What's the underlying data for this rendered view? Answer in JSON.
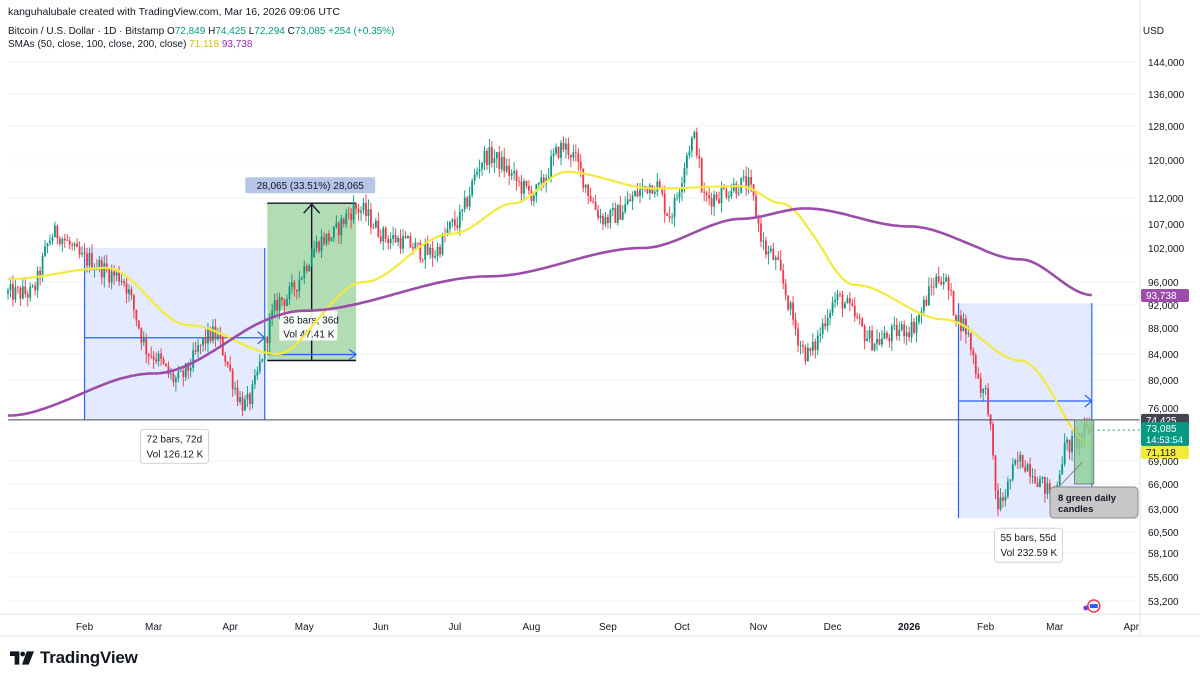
{
  "header": {
    "credit": "kanguhalubale created with TradingView.com, Mar 16, 2026 09:06 UTC",
    "symbol": "Bitcoin / U.S. Dollar · 1D · Bitstamp",
    "o_label": "O",
    "o_value": "72,849",
    "h_label": "H",
    "h_value": "74,425",
    "l_label": "L",
    "l_value": "72,294",
    "c_label": "C",
    "c_value": "73,085",
    "change": "+254 (+0.35%)",
    "sma_label": "SMAs (50, close, 100, close, 200, close)",
    "sma50_value": "71,118",
    "sma200_value": "93,738"
  },
  "currency": "USD",
  "brand": "TradingView",
  "colors": {
    "up": "#089981",
    "down": "#f23645",
    "sma50": "#f2eb3b",
    "sma200": "#9c4ca9",
    "range_blue": "#2962ff",
    "range_fill": "#dbe3ff",
    "green_fill": "#a5d6a7",
    "grid": "#f0f3fa"
  },
  "chart_data": {
    "type": "candlestick",
    "symbol": "BTC/USD",
    "interval": "1D",
    "x_ticks": [
      "Feb",
      "Mar",
      "Apr",
      "May",
      "Jun",
      "Jul",
      "Aug",
      "Sep",
      "Oct",
      "Nov",
      "Dec",
      "2026",
      "Feb",
      "Mar",
      "Apr"
    ],
    "y_ticks": [
      "144,000",
      "136,000",
      "128,000",
      "120,000",
      "112,000",
      "107,000",
      "102,000",
      "96,000",
      "92,000",
      "88,000",
      "84,000",
      "80,000",
      "76,000",
      "69,000",
      "66,000",
      "63,000",
      "60,500",
      "58,100",
      "55,600",
      "53,200"
    ],
    "price_anchors": [
      {
        "date": "2025-01-10",
        "close": 94000
      },
      {
        "date": "2025-01-20",
        "close": 105000
      },
      {
        "date": "2025-02-01",
        "close": 100000
      },
      {
        "date": "2025-02-15",
        "close": 97000
      },
      {
        "date": "2025-02-28",
        "close": 84000
      },
      {
        "date": "2025-03-10",
        "close": 80000
      },
      {
        "date": "2025-03-25",
        "close": 87000
      },
      {
        "date": "2025-04-07",
        "close": 76500
      },
      {
        "date": "2025-04-22",
        "close": 93000
      },
      {
        "date": "2025-05-10",
        "close": 104000
      },
      {
        "date": "2025-05-22",
        "close": 110000
      },
      {
        "date": "2025-06-05",
        "close": 104000
      },
      {
        "date": "2025-06-22",
        "close": 101000
      },
      {
        "date": "2025-07-01",
        "close": 107000
      },
      {
        "date": "2025-07-14",
        "close": 121000
      },
      {
        "date": "2025-08-02",
        "close": 113000
      },
      {
        "date": "2025-08-14",
        "close": 123000
      },
      {
        "date": "2025-08-31",
        "close": 108000
      },
      {
        "date": "2025-09-20",
        "close": 115000
      },
      {
        "date": "2025-09-26",
        "close": 109000
      },
      {
        "date": "2025-10-06",
        "close": 125000
      },
      {
        "date": "2025-10-10",
        "close": 112000
      },
      {
        "date": "2025-10-27",
        "close": 115000
      },
      {
        "date": "2025-11-05",
        "close": 101000
      },
      {
        "date": "2025-11-21",
        "close": 84000
      },
      {
        "date": "2025-12-03",
        "close": 93000
      },
      {
        "date": "2025-12-18",
        "close": 86000
      },
      {
        "date": "2026-01-01",
        "close": 88000
      },
      {
        "date": "2026-01-14",
        "close": 97000
      },
      {
        "date": "2026-01-22",
        "close": 89000
      },
      {
        "date": "2026-02-01",
        "close": 78000
      },
      {
        "date": "2026-02-06",
        "close": 63500
      },
      {
        "date": "2026-02-15",
        "close": 69000
      },
      {
        "date": "2026-02-28",
        "close": 65000
      },
      {
        "date": "2026-03-06",
        "close": 71000
      },
      {
        "date": "2026-03-16",
        "close": 73085
      }
    ],
    "sma50_anchors": [
      {
        "date": "2025-01-01",
        "value": 96500
      },
      {
        "date": "2025-02-10",
        "value": 98500
      },
      {
        "date": "2025-03-15",
        "value": 88500
      },
      {
        "date": "2025-04-20",
        "value": 84000
      },
      {
        "date": "2025-05-25",
        "value": 96000
      },
      {
        "date": "2025-06-30",
        "value": 105000
      },
      {
        "date": "2025-07-25",
        "value": 111000
      },
      {
        "date": "2025-08-15",
        "value": 117500
      },
      {
        "date": "2025-09-20",
        "value": 114000
      },
      {
        "date": "2025-10-25",
        "value": 114500
      },
      {
        "date": "2025-11-10",
        "value": 111000
      },
      {
        "date": "2025-12-10",
        "value": 95500
      },
      {
        "date": "2026-01-15",
        "value": 89500
      },
      {
        "date": "2026-02-15",
        "value": 83000
      },
      {
        "date": "2026-03-16",
        "value": 71118
      }
    ],
    "sma200_anchors": [
      {
        "date": "2025-01-01",
        "value": 75000
      },
      {
        "date": "2025-03-01",
        "value": 81000
      },
      {
        "date": "2025-05-01",
        "value": 91000
      },
      {
        "date": "2025-07-15",
        "value": 97000
      },
      {
        "date": "2025-09-15",
        "value": 102000
      },
      {
        "date": "2025-10-25",
        "value": 108000
      },
      {
        "date": "2025-11-20",
        "value": 110000
      },
      {
        "date": "2026-01-01",
        "value": 106500
      },
      {
        "date": "2026-02-15",
        "value": 100000
      },
      {
        "date": "2026-03-16",
        "value": 93738
      }
    ],
    "price_tags": [
      {
        "label": "93,738",
        "value": 93738,
        "color": "#9c4ca9",
        "text_color": "#ffffff"
      },
      {
        "label": "74,425",
        "value": 74425,
        "color": "#434651",
        "text_color": "#ffffff"
      },
      {
        "label": "73,085",
        "sub": "14:53:54",
        "value": 73085,
        "color": "#089981",
        "text_color": "#ffffff"
      },
      {
        "label": "71,118",
        "value": 71118,
        "color": "#f2eb3b",
        "text_color": "#131722"
      }
    ],
    "horizontal_line": {
      "value": 74425
    },
    "ranges": [
      {
        "name": "range-2025-q1",
        "start": "2025-02-01",
        "end": "2025-04-15",
        "high": 102000,
        "low": 74500,
        "arrow_at": 86500,
        "label_bars": "72 bars, 72d",
        "label_vol": "Vol 126.12 K"
      },
      {
        "name": "range-2026",
        "start": "2026-01-21",
        "end": "2026-03-16",
        "high": 92300,
        "low": 62000,
        "arrow_at": 77000,
        "label_bars": "55 bars, 55d",
        "label_vol": "Vol 232.59 K"
      }
    ],
    "rally": {
      "start": "2025-04-16",
      "end": "2025-05-22",
      "low": 83000,
      "high": 111000,
      "label_top": "28,065 (33.51%) 28,065",
      "label_bars": "36 bars, 36d",
      "label_vol": "Vol 47.41 K"
    },
    "green_box": {
      "start": "2026-03-09",
      "end": "2026-03-16",
      "low": 66000,
      "high": 74425
    },
    "callout": "8 green daily candles"
  }
}
